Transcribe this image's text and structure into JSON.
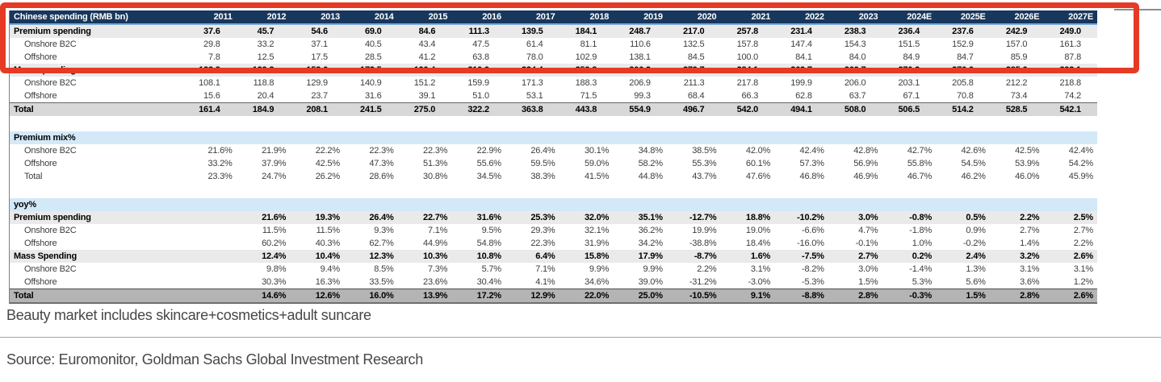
{
  "colors": {
    "header_bg": "#17375d",
    "section_bg": "#d3e9f8",
    "highlight_red": "#e53b26"
  },
  "table": {
    "header_label": "Chinese spending (RMB bn)",
    "years": [
      "2011",
      "2012",
      "2013",
      "2014",
      "2015",
      "2016",
      "2017",
      "2018",
      "2019",
      "2020",
      "2021",
      "2022",
      "2023",
      "2024E",
      "2025E",
      "2026E",
      "2027E"
    ],
    "rows": [
      {
        "label": "Premium spending",
        "style": "bold-gray",
        "indent": false,
        "values": [
          "37.6",
          "45.7",
          "54.6",
          "69.0",
          "84.6",
          "111.3",
          "139.5",
          "184.1",
          "248.7",
          "217.0",
          "257.8",
          "231.4",
          "238.3",
          "236.4",
          "237.6",
          "242.9",
          "249.0"
        ]
      },
      {
        "label": "Onshore B2C",
        "style": "plain",
        "indent": true,
        "values": [
          "29.8",
          "33.2",
          "37.1",
          "40.5",
          "43.4",
          "47.5",
          "61.4",
          "81.1",
          "110.6",
          "132.5",
          "157.8",
          "147.4",
          "154.3",
          "151.5",
          "152.9",
          "157.0",
          "161.3"
        ]
      },
      {
        "label": "Offshore",
        "style": "plain",
        "indent": true,
        "values": [
          "7.8",
          "12.5",
          "17.5",
          "28.5",
          "41.2",
          "63.8",
          "78.0",
          "102.9",
          "138.1",
          "84.5",
          "100.0",
          "84.1",
          "84.0",
          "84.9",
          "84.7",
          "85.9",
          "87.8"
        ]
      },
      {
        "label": "Mass spending",
        "style": "bold-gray",
        "indent": false,
        "values": [
          "123.8",
          "139.2",
          "153.6",
          "172.5",
          "190.4",
          "210.9",
          "224.4",
          "259.8",
          "306.2",
          "279.7",
          "284.1",
          "262.7",
          "269.7",
          "270.2",
          "276.6",
          "285.6",
          "293.1"
        ]
      },
      {
        "label": "Onshore B2C",
        "style": "plain",
        "indent": true,
        "values": [
          "108.1",
          "118.8",
          "129.9",
          "140.9",
          "151.2",
          "159.9",
          "171.3",
          "188.3",
          "206.9",
          "211.3",
          "217.8",
          "199.9",
          "206.0",
          "203.1",
          "205.8",
          "212.2",
          "218.8"
        ]
      },
      {
        "label": "Offshore",
        "style": "plain",
        "indent": true,
        "values": [
          "15.6",
          "20.4",
          "23.7",
          "31.6",
          "39.1",
          "51.0",
          "53.1",
          "71.5",
          "99.3",
          "68.4",
          "66.3",
          "62.8",
          "63.7",
          "67.1",
          "70.8",
          "73.4",
          "74.2"
        ]
      },
      {
        "label": "Total",
        "style": "total",
        "indent": false,
        "values": [
          "161.4",
          "184.9",
          "208.1",
          "241.5",
          "275.0",
          "322.2",
          "363.8",
          "443.8",
          "554.9",
          "496.7",
          "542.0",
          "494.1",
          "508.0",
          "506.5",
          "514.2",
          "528.5",
          "542.1"
        ]
      },
      {
        "label": "",
        "style": "spacer",
        "indent": false,
        "values": []
      },
      {
        "label": "Premium mix%",
        "style": "section",
        "indent": false,
        "values": []
      },
      {
        "label": "Onshore B2C",
        "style": "plain",
        "indent": true,
        "values": [
          "21.6%",
          "21.9%",
          "22.2%",
          "22.3%",
          "22.3%",
          "22.9%",
          "26.4%",
          "30.1%",
          "34.8%",
          "38.5%",
          "42.0%",
          "42.4%",
          "42.8%",
          "42.7%",
          "42.6%",
          "42.5%",
          "42.4%"
        ]
      },
      {
        "label": "Offshore",
        "style": "plain",
        "indent": true,
        "values": [
          "33.2%",
          "37.9%",
          "42.5%",
          "47.3%",
          "51.3%",
          "55.6%",
          "59.5%",
          "59.0%",
          "58.2%",
          "55.3%",
          "60.1%",
          "57.3%",
          "56.9%",
          "55.8%",
          "54.5%",
          "53.9%",
          "54.2%"
        ]
      },
      {
        "label": "Total",
        "style": "plain",
        "indent": true,
        "values": [
          "23.3%",
          "24.7%",
          "26.2%",
          "28.6%",
          "30.8%",
          "34.5%",
          "38.3%",
          "41.5%",
          "44.8%",
          "43.7%",
          "47.6%",
          "46.8%",
          "46.9%",
          "46.7%",
          "46.2%",
          "46.0%",
          "45.9%"
        ]
      },
      {
        "label": "",
        "style": "spacer",
        "indent": false,
        "values": []
      },
      {
        "label": "yoy%",
        "style": "section",
        "indent": false,
        "values": []
      },
      {
        "label": "Premium spending",
        "style": "bold-gray",
        "indent": false,
        "values": [
          "",
          "21.6%",
          "19.3%",
          "26.4%",
          "22.7%",
          "31.6%",
          "25.3%",
          "32.0%",
          "35.1%",
          "-12.7%",
          "18.8%",
          "-10.2%",
          "3.0%",
          "-0.8%",
          "0.5%",
          "2.2%",
          "2.5%"
        ]
      },
      {
        "label": "Onshore B2C",
        "style": "plain",
        "indent": true,
        "values": [
          "",
          "11.5%",
          "11.5%",
          "9.3%",
          "7.1%",
          "9.5%",
          "29.3%",
          "32.1%",
          "36.2%",
          "19.9%",
          "19.0%",
          "-6.6%",
          "4.7%",
          "-1.8%",
          "0.9%",
          "2.7%",
          "2.7%"
        ]
      },
      {
        "label": "Offshore",
        "style": "plain",
        "indent": true,
        "values": [
          "",
          "60.2%",
          "40.3%",
          "62.7%",
          "44.9%",
          "54.8%",
          "22.3%",
          "31.9%",
          "34.2%",
          "-38.8%",
          "18.4%",
          "-16.0%",
          "-0.1%",
          "1.0%",
          "-0.2%",
          "1.4%",
          "2.2%"
        ]
      },
      {
        "label": "Mass Spending",
        "style": "bold-gray",
        "indent": false,
        "values": [
          "",
          "12.4%",
          "10.4%",
          "12.3%",
          "10.3%",
          "10.8%",
          "6.4%",
          "15.8%",
          "17.9%",
          "-8.7%",
          "1.6%",
          "-7.5%",
          "2.7%",
          "0.2%",
          "2.4%",
          "3.2%",
          "2.6%"
        ]
      },
      {
        "label": "Onshore B2C",
        "style": "plain",
        "indent": true,
        "values": [
          "",
          "9.8%",
          "9.4%",
          "8.5%",
          "7.3%",
          "5.7%",
          "7.1%",
          "9.9%",
          "9.9%",
          "2.2%",
          "3.1%",
          "-8.2%",
          "3.0%",
          "-1.4%",
          "1.3%",
          "3.1%",
          "3.1%"
        ]
      },
      {
        "label": "Offshore",
        "style": "plain",
        "indent": true,
        "values": [
          "",
          "30.3%",
          "16.3%",
          "33.5%",
          "23.6%",
          "30.4%",
          "4.1%",
          "34.6%",
          "39.0%",
          "-31.2%",
          "-3.0%",
          "-5.3%",
          "1.5%",
          "5.3%",
          "5.6%",
          "3.6%",
          "1.2%"
        ]
      },
      {
        "label": "Total",
        "style": "total-dark",
        "indent": false,
        "values": [
          "",
          "14.6%",
          "12.6%",
          "16.0%",
          "13.9%",
          "17.2%",
          "12.9%",
          "22.0%",
          "25.0%",
          "-10.5%",
          "9.1%",
          "-8.8%",
          "2.8%",
          "-0.3%",
          "1.5%",
          "2.8%",
          "2.6%"
        ]
      }
    ]
  },
  "footnote": "Beauty market includes skincare+cosmetics+adult suncare",
  "source": "Source: Euromonitor, Goldman Sachs Global Investment Research"
}
